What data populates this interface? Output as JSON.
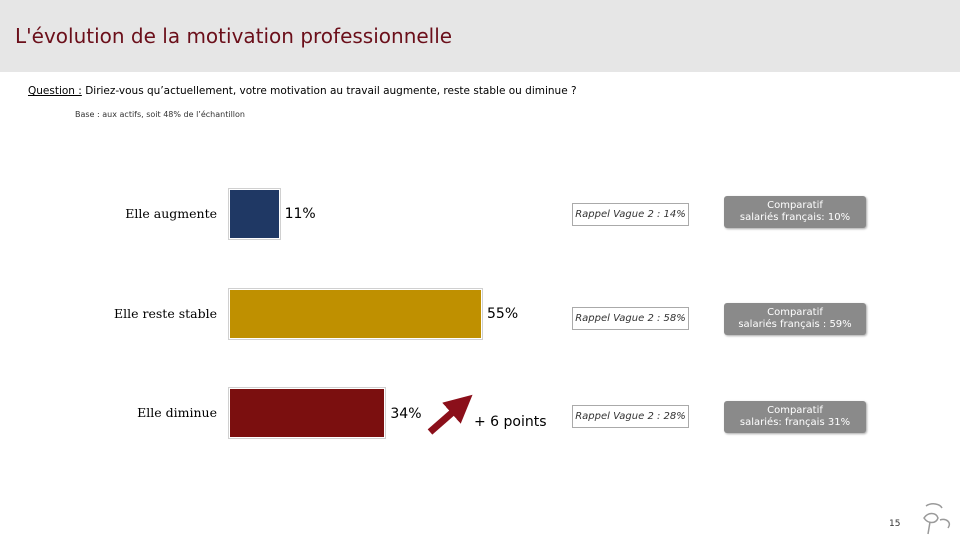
{
  "header": {
    "title": "L'évolution de la motivation professionnelle"
  },
  "question": {
    "label": "Question :",
    "text": "Diriez-vous qu’actuellement, votre motivation au travail augmente, reste stable ou diminue ?"
  },
  "base": "Base : aux actifs, soit 48% de l’échantillon",
  "chart_data": {
    "type": "bar",
    "orientation": "horizontal",
    "xlim": [
      0,
      100
    ],
    "grid": false,
    "categories": [
      "Elle augmente",
      "Elle reste stable",
      "Elle diminue"
    ],
    "values": [
      11,
      55,
      34
    ],
    "value_labels": [
      "11%",
      "55%",
      "34%"
    ],
    "colors": [
      "#1f3864",
      "#bf9000",
      "#7b0f0f"
    ],
    "rappel": [
      "Rappel Vague 2 : 14%",
      "Rappel Vague 2 : 58%",
      "Rappel Vague 2 : 28%"
    ],
    "comparatif": [
      [
        "Comparatif",
        "salariés français: 10%"
      ],
      [
        "Comparatif",
        "salariés français : 59%"
      ],
      [
        "Comparatif",
        "salariés: français 31%"
      ]
    ],
    "annotation": {
      "text": "+ 6 points",
      "arrow_color": "#8b0f1a"
    }
  },
  "footer": {
    "page": "15"
  }
}
